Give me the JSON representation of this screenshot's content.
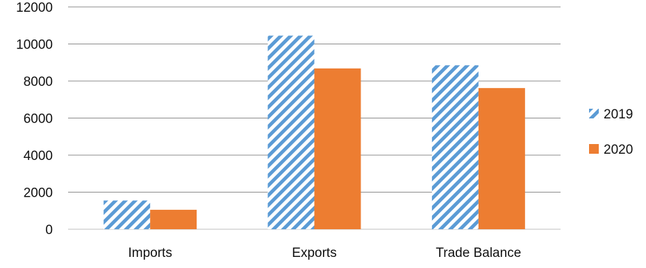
{
  "chart_data": {
    "type": "bar",
    "categories": [
      "Imports",
      "Exports",
      "Trade Balance"
    ],
    "series": [
      {
        "name": "2019",
        "values": [
          1550,
          10450,
          8850
        ],
        "color": "#5b9bd5",
        "fill": "diagonal-stripes"
      },
      {
        "name": "2020",
        "values": [
          1050,
          8680,
          7620
        ],
        "color": "#ed7d31",
        "fill": "solid"
      }
    ],
    "yticks": [
      "0",
      "2000",
      "4000",
      "6000",
      "8000",
      "10000",
      "12000"
    ],
    "ylim": [
      0,
      12000
    ],
    "grid": true,
    "legend_position": "right"
  }
}
